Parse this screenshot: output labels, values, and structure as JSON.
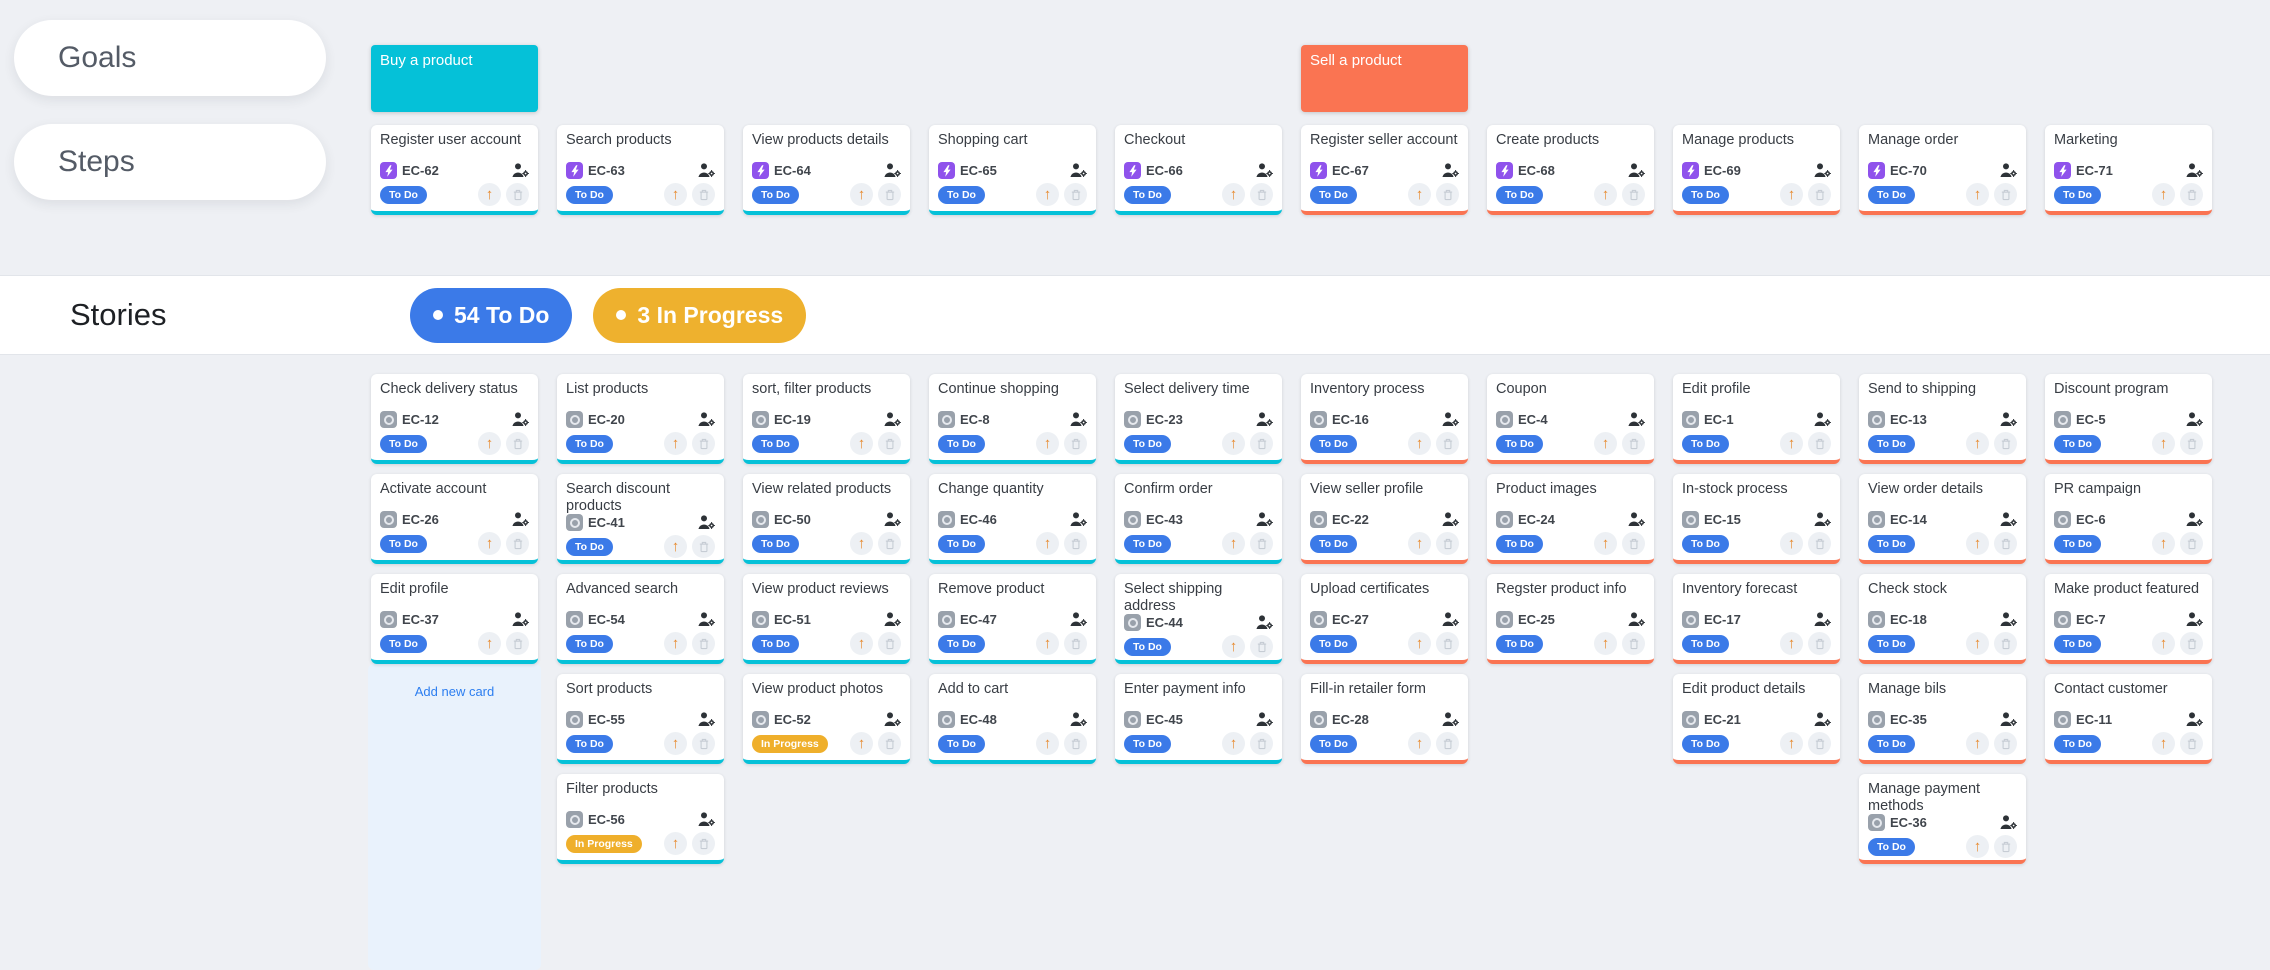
{
  "palette": {
    "background": "#eef0f4",
    "buy_accent": "#05c1d8",
    "sell_accent": "#fa7452",
    "todo_badge": "#3b7ae8",
    "inprogress_badge": "#efaf2b",
    "step_icon": "#8f52ec",
    "story_icon": "#99a1ab",
    "priority_arrow": "#e7892c",
    "add_card_link": "#2c7ef0",
    "add_column_highlight": "#e9f2fc"
  },
  "sidebar": {
    "goals_label": "Goals",
    "steps_label": "Steps"
  },
  "goals": [
    {
      "title": "Buy a product",
      "color": "#05c1d8",
      "column": 0
    },
    {
      "title": "Sell a product",
      "color": "#fa7452",
      "column": 5
    }
  ],
  "steps": [
    {
      "title": "Register user account",
      "code": "EC-62",
      "status": "To Do",
      "group": "buy"
    },
    {
      "title": "Search products",
      "code": "EC-63",
      "status": "To Do",
      "group": "buy"
    },
    {
      "title": "View products details",
      "code": "EC-64",
      "status": "To Do",
      "group": "buy"
    },
    {
      "title": "Shopping cart",
      "code": "EC-65",
      "status": "To Do",
      "group": "buy"
    },
    {
      "title": "Checkout",
      "code": "EC-66",
      "status": "To Do",
      "group": "buy"
    },
    {
      "title": "Register seller account",
      "code": "EC-67",
      "status": "To Do",
      "group": "sell"
    },
    {
      "title": "Create products",
      "code": "EC-68",
      "status": "To Do",
      "group": "sell"
    },
    {
      "title": "Manage products",
      "code": "EC-69",
      "status": "To Do",
      "group": "sell"
    },
    {
      "title": "Manage order",
      "code": "EC-70",
      "status": "To Do",
      "group": "sell"
    },
    {
      "title": "Marketing",
      "code": "EC-71",
      "status": "To Do",
      "group": "sell"
    }
  ],
  "stories_header": {
    "label": "Stories",
    "badges": [
      {
        "text": "54 To Do",
        "color": "#3b7ae8"
      },
      {
        "text": "3 In Progress",
        "color": "#eeb12e"
      }
    ]
  },
  "grid": {
    "add_new_card_label": "Add new card",
    "columns": [
      {
        "group": "buy",
        "cards": [
          {
            "title": "Check delivery status",
            "code": "EC-12",
            "status": "To Do"
          },
          {
            "title": "Activate account",
            "code": "EC-26",
            "status": "To Do"
          },
          {
            "title": "Edit profile",
            "code": "EC-37",
            "status": "To Do"
          }
        ]
      },
      {
        "group": "buy",
        "cards": [
          {
            "title": "List products",
            "code": "EC-20",
            "status": "To Do"
          },
          {
            "title": "Search discount products",
            "code": "EC-41",
            "status": "To Do"
          },
          {
            "title": "Advanced search",
            "code": "EC-54",
            "status": "To Do"
          },
          {
            "title": "Sort products",
            "code": "EC-55",
            "status": "To Do"
          },
          {
            "title": "Filter products",
            "code": "EC-56",
            "status": "In Progress"
          }
        ]
      },
      {
        "group": "buy",
        "cards": [
          {
            "title": "sort, filter products",
            "code": "EC-19",
            "status": "To Do"
          },
          {
            "title": "View related products",
            "code": "EC-50",
            "status": "To Do"
          },
          {
            "title": "View product reviews",
            "code": "EC-51",
            "status": "To Do"
          },
          {
            "title": "View product photos",
            "code": "EC-52",
            "status": "In Progress"
          }
        ]
      },
      {
        "group": "buy",
        "cards": [
          {
            "title": "Continue shopping",
            "code": "EC-8",
            "status": "To Do"
          },
          {
            "title": "Change quantity",
            "code": "EC-46",
            "status": "To Do"
          },
          {
            "title": "Remove product",
            "code": "EC-47",
            "status": "To Do"
          },
          {
            "title": "Add to cart",
            "code": "EC-48",
            "status": "To Do"
          }
        ]
      },
      {
        "group": "buy",
        "cards": [
          {
            "title": "Select delivery time",
            "code": "EC-23",
            "status": "To Do"
          },
          {
            "title": "Confirm order",
            "code": "EC-43",
            "status": "To Do"
          },
          {
            "title": "Select shipping address",
            "code": "EC-44",
            "status": "To Do"
          },
          {
            "title": "Enter payment info",
            "code": "EC-45",
            "status": "To Do"
          }
        ]
      },
      {
        "group": "sell",
        "cards": [
          {
            "title": "Inventory process",
            "code": "EC-16",
            "status": "To Do"
          },
          {
            "title": "View seller profile",
            "code": "EC-22",
            "status": "To Do"
          },
          {
            "title": "Upload certificates",
            "code": "EC-27",
            "status": "To Do"
          },
          {
            "title": "Fill-in retailer form",
            "code": "EC-28",
            "status": "To Do"
          }
        ]
      },
      {
        "group": "sell",
        "cards": [
          {
            "title": "Coupon",
            "code": "EC-4",
            "status": "To Do"
          },
          {
            "title": "Product images",
            "code": "EC-24",
            "status": "To Do"
          },
          {
            "title": "Regster product info",
            "code": "EC-25",
            "status": "To Do"
          }
        ]
      },
      {
        "group": "sell",
        "cards": [
          {
            "title": "Edit profile",
            "code": "EC-1",
            "status": "To Do"
          },
          {
            "title": "In-stock process",
            "code": "EC-15",
            "status": "To Do"
          },
          {
            "title": "Inventory forecast",
            "code": "EC-17",
            "status": "To Do"
          },
          {
            "title": "Edit product details",
            "code": "EC-21",
            "status": "To Do"
          }
        ]
      },
      {
        "group": "sell",
        "cards": [
          {
            "title": "Send to shipping",
            "code": "EC-13",
            "status": "To Do"
          },
          {
            "title": "View order details",
            "code": "EC-14",
            "status": "To Do"
          },
          {
            "title": "Check stock",
            "code": "EC-18",
            "status": "To Do"
          },
          {
            "title": "Manage bils",
            "code": "EC-35",
            "status": "To Do"
          },
          {
            "title": "Manage payment methods",
            "code": "EC-36",
            "status": "To Do"
          }
        ]
      },
      {
        "group": "sell",
        "cards": [
          {
            "title": "Discount program",
            "code": "EC-5",
            "status": "To Do"
          },
          {
            "title": "PR campaign",
            "code": "EC-6",
            "status": "To Do"
          },
          {
            "title": "Make product featured",
            "code": "EC-7",
            "status": "To Do"
          },
          {
            "title": "Contact customer",
            "code": "EC-11",
            "status": "To Do"
          }
        ]
      }
    ]
  }
}
